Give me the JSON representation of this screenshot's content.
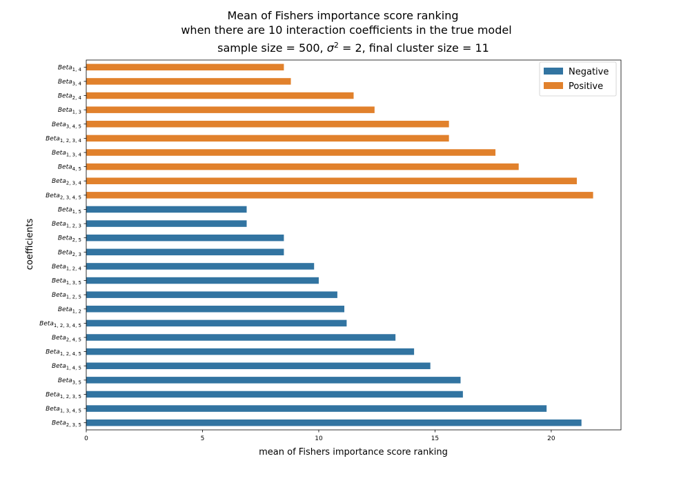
{
  "chart_data": {
    "type": "bar",
    "orientation": "horizontal",
    "title": "Mean of Fishers importance score ranking",
    "subtitle": "when there are 10 interaction coefficients in the true model",
    "subtitle_parts": {
      "prefix": "sample size = 500, ",
      "sigma": "σ",
      "sigma_exp": "2",
      "suffix": " = 2, final cluster size = 11"
    },
    "xlabel": "mean of Fishers importance score ranking",
    "ylabel": "coefficients",
    "xlim": [
      0,
      23
    ],
    "xticks": [
      0,
      5,
      10,
      15,
      20
    ],
    "grid": false,
    "legend_position": "top-right",
    "series": [
      {
        "name": "Negative",
        "color": "#3274a1"
      },
      {
        "name": "Positive",
        "color": "#e1812c"
      }
    ],
    "bars": [
      {
        "base": "Beta",
        "sub": "1, 4",
        "value": 8.5,
        "series": "Positive"
      },
      {
        "base": "Beta",
        "sub": "3, 4",
        "value": 8.8,
        "series": "Positive"
      },
      {
        "base": "Beta",
        "sub": "2, 4",
        "value": 11.5,
        "series": "Positive"
      },
      {
        "base": "Beta",
        "sub": "1, 3",
        "value": 12.4,
        "series": "Positive"
      },
      {
        "base": "Beta",
        "sub": "3, 4, 5",
        "value": 15.6,
        "series": "Positive"
      },
      {
        "base": "Beta",
        "sub": "1, 2, 3, 4",
        "value": 15.6,
        "series": "Positive"
      },
      {
        "base": "Beta",
        "sub": "1, 3, 4",
        "value": 17.6,
        "series": "Positive"
      },
      {
        "base": "Beta",
        "sub": "4, 5",
        "value": 18.6,
        "series": "Positive"
      },
      {
        "base": "Beta",
        "sub": "2, 3, 4",
        "value": 21.1,
        "series": "Positive"
      },
      {
        "base": "Beta",
        "sub": "2, 3, 4, 5",
        "value": 21.8,
        "series": "Positive"
      },
      {
        "base": "Beta",
        "sub": "1, 5",
        "value": 6.9,
        "series": "Negative"
      },
      {
        "base": "Beta",
        "sub": "1, 2, 3",
        "value": 6.9,
        "series": "Negative"
      },
      {
        "base": "Beta",
        "sub": "2, 5",
        "value": 8.5,
        "series": "Negative"
      },
      {
        "base": "Beta",
        "sub": "2, 3",
        "value": 8.5,
        "series": "Negative"
      },
      {
        "base": "Beta",
        "sub": "1, 2, 4",
        "value": 9.8,
        "series": "Negative"
      },
      {
        "base": "Beta",
        "sub": "1, 3, 5",
        "value": 10.0,
        "series": "Negative"
      },
      {
        "base": "Beta",
        "sub": "1, 2, 5",
        "value": 10.8,
        "series": "Negative"
      },
      {
        "base": "Beta",
        "sub": "1, 2",
        "value": 11.1,
        "series": "Negative"
      },
      {
        "base": "Beta",
        "sub": "1, 2, 3, 4, 5",
        "value": 11.2,
        "series": "Negative"
      },
      {
        "base": "Beta",
        "sub": "2, 4, 5",
        "value": 13.3,
        "series": "Negative"
      },
      {
        "base": "Beta",
        "sub": "1, 2, 4, 5",
        "value": 14.1,
        "series": "Negative"
      },
      {
        "base": "Beta",
        "sub": "1, 4, 5",
        "value": 14.8,
        "series": "Negative"
      },
      {
        "base": "Beta",
        "sub": "3, 5",
        "value": 16.1,
        "series": "Negative"
      },
      {
        "base": "Beta",
        "sub": "1, 2, 3, 5",
        "value": 16.2,
        "series": "Negative"
      },
      {
        "base": "Beta",
        "sub": "1, 3, 4, 5",
        "value": 19.8,
        "series": "Negative"
      },
      {
        "base": "Beta",
        "sub": "2, 3, 5",
        "value": 21.3,
        "series": "Negative"
      }
    ]
  }
}
